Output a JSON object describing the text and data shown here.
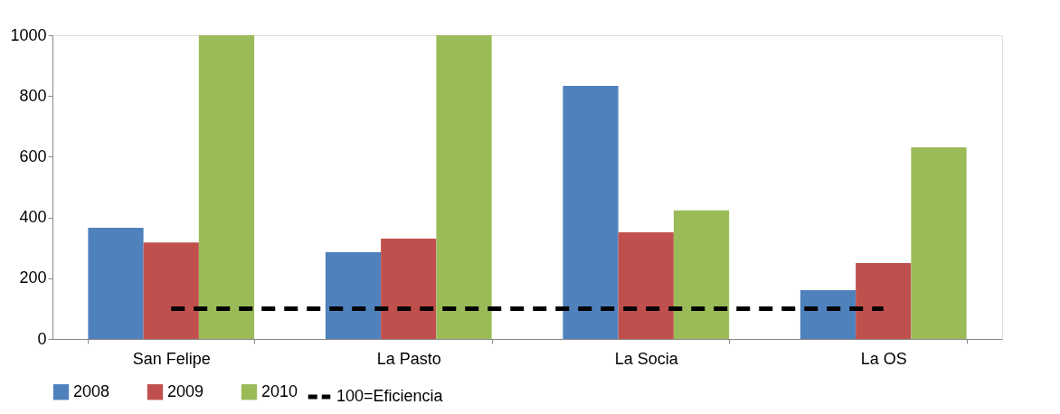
{
  "chart_data": {
    "type": "bar",
    "categories": [
      "San Felipe",
      "La Pasto",
      "La Socia",
      "La OS"
    ],
    "series": [
      {
        "name": "2008",
        "color": "#4f81bd",
        "values": [
          366,
          286,
          833,
          161
        ]
      },
      {
        "name": "2009",
        "color": "#c0504d",
        "values": [
          318,
          330,
          351,
          250
        ]
      },
      {
        "name": "2010",
        "color": "#9bbb59",
        "values": [
          1000,
          1000,
          423,
          631
        ]
      },
      {
        "name": "100=Eficiencia",
        "type": "line",
        "color": "#000000",
        "line_style": "dashed",
        "values": [
          100,
          100,
          100,
          100
        ]
      }
    ],
    "ylim": [
      0,
      1000
    ],
    "yticks": [
      0,
      200,
      400,
      600,
      800,
      1000
    ],
    "grid": false,
    "legend": "bottom"
  }
}
